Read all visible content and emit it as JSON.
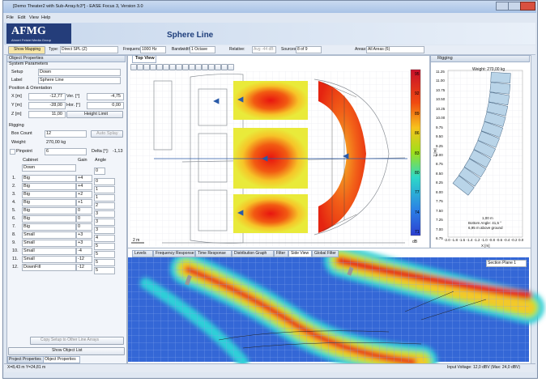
{
  "window": {
    "title": "[Demo Theater2 with Sub-Array.fc3*] - EASE Focus 3, Version 3.0",
    "menu": [
      "File",
      "Edit",
      "View",
      "Help"
    ]
  },
  "header": {
    "logo": "AFMG",
    "logo_sub": "Ahnert Feistel Media Group",
    "title": "Sphere Line"
  },
  "toolbar": {
    "show_mapping": "Show Mapping",
    "type_label": "Type:",
    "type": "Direct SPL (Z)",
    "frequency_label": "Frequency:",
    "frequency": "1000 Hz",
    "bandwidth_label": "Bandwidth:",
    "bandwidth": "1 Octave",
    "relative_label": "Relative:",
    "relative": "Avg -44 dB",
    "sources_label": "Sources:",
    "sources": "8 of 9",
    "areas_label": "Areas:",
    "areas": "All Areas (6)"
  },
  "object_properties": {
    "title": "Object Properties",
    "system_parameters": "System Parameters",
    "setup_label": "Setup",
    "setup": "Down",
    "label_label": "Label",
    "label": "Sphere Line",
    "position_orientation": "Position & Orientation",
    "x_label": "X [m]",
    "x": "-12,77",
    "ver_label": "Ver. [°]",
    "ver": "-4,75",
    "y_label": "Y [m]",
    "y": "-28,00",
    "hor_label": "Hor. [°]",
    "hor": "0,00",
    "z_label": "Z [m]",
    "z": "11,00",
    "height_limit": "Height Limit",
    "rigging": "Rigging",
    "box_count_label": "Box Count",
    "box_count": "12",
    "auto_splay": "Auto Splay",
    "weight_label": "Weight:",
    "weight": "270,00 kg",
    "pinpoint": "Pinpoint",
    "pinpoint_value": "6",
    "delta_label": "Delta [°]:",
    "delta": "-1,13",
    "cabinet_header": "Cabinet",
    "gain_header": "Gain",
    "angle_header": "Angle",
    "top_cabinet": "Down",
    "top_angle": "0",
    "rows": [
      [
        "1.",
        "Big",
        "+4",
        "0"
      ],
      [
        "2.",
        "Big",
        "+4",
        "1"
      ],
      [
        "3.",
        "Big",
        "+2",
        "1"
      ],
      [
        "4.",
        "Big",
        "+1",
        "2"
      ],
      [
        "5.",
        "Big",
        "0",
        "3"
      ],
      [
        "6.",
        "Big",
        "0",
        "3"
      ],
      [
        "7.",
        "Big",
        "0",
        "3"
      ],
      [
        "8.",
        "Small",
        "+3",
        "4"
      ],
      [
        "9.",
        "Small",
        "+3",
        "5"
      ],
      [
        "10.",
        "Small",
        "-4",
        "5"
      ],
      [
        "11.",
        "Small",
        "-12",
        "5"
      ],
      [
        "12.",
        "DownFill",
        "-12",
        "5"
      ]
    ],
    "copy_setup": "Copy Setup to Other Line Arrays",
    "show_object_list": "Show Object List",
    "tabs": [
      "Project Properties",
      "Object Properties"
    ]
  },
  "top_view": {
    "tab": "Top View",
    "scale": "2 m",
    "colorbar": [
      "95",
      "92",
      "89",
      "86",
      "83",
      "80",
      "77",
      "74",
      "71"
    ],
    "unit": "dB"
  },
  "rigging": {
    "title": "Rigging",
    "weight": "Weight: 270,00 kg",
    "yticks": [
      "11.25",
      "11.00",
      "10.75",
      "10.50",
      "10.25",
      "10.00",
      "9.75",
      "9.50",
      "9.25",
      "9.00",
      "8.75",
      "8.50",
      "8.25",
      "8.00",
      "7.75",
      "7.50",
      "7.25",
      "7.00",
      "6.75"
    ],
    "xticks": [
      "-2.0",
      "-1.8",
      "-1.6",
      "-1.4",
      "-1.2",
      "-1.0",
      "-0.8",
      "-0.6",
      "-0.4",
      "-0.2",
      "0.0"
    ],
    "xlabel": "X [m]",
    "ylabel": "Z [m]",
    "dim": "1,00 m",
    "bottom_angle": "Bottom Angle: 41,5 °",
    "above_ground": "6,95 m above ground"
  },
  "bottom_tabs": [
    "Levels",
    "Frequency Response",
    "Time Response",
    "Distribution Graph",
    "Filter",
    "Side View",
    "Global Filter"
  ],
  "side_view": {
    "section": "Section Plane 1"
  },
  "status": {
    "position": "X=8,43 m  Y=24,81 m",
    "voltage": "Input Voltage: 12,0 dBV (Max: 24,0 dBV)"
  }
}
